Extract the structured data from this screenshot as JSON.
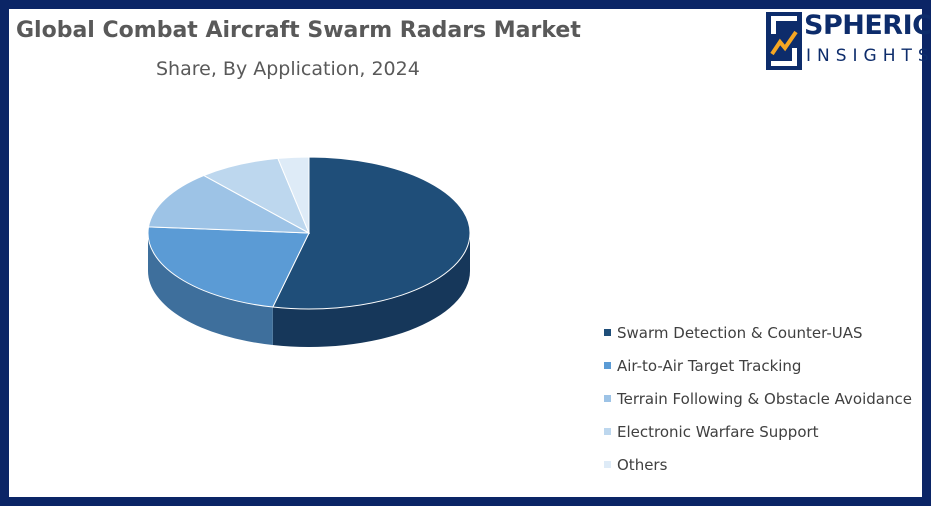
{
  "chart_data": {
    "type": "pie",
    "title": "Global Combat Aircraft Swarm Radars Market",
    "subtitle": "Share, By Application, 2024",
    "categories": [
      "Swarm Detection & Counter-UAS",
      "Air-to-Air Target Tracking",
      "Terrain Following & Obstacle Avoidance",
      "Electronic Warfare Support",
      "Others"
    ],
    "values": [
      52,
      22,
      12,
      8,
      3
    ],
    "colors": [
      "#1f4e79",
      "#5b9bd5",
      "#9dc3e6",
      "#bdd7ee",
      "#deebf7"
    ],
    "side_colors": [
      "#16375a",
      "#3e6f9c",
      "#6f8fae",
      "#8ea2b5",
      "#a9b5c1"
    ],
    "legend_position": "right",
    "style": "3d"
  },
  "brand": {
    "logo_text_top": "SPHERICAL",
    "logo_text_bottom": "INSIGHTS"
  }
}
